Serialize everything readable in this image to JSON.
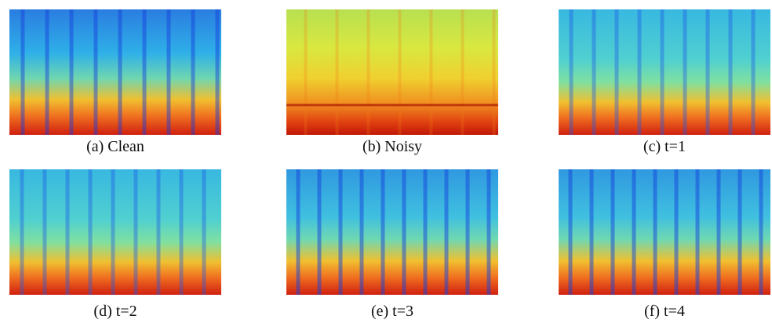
{
  "figure": {
    "panels": [
      {
        "caption": "(a) Clean"
      },
      {
        "caption": "(b) Noisy"
      },
      {
        "caption": "(c) t=1"
      },
      {
        "caption": "(d) t=2"
      },
      {
        "caption": "(e) t=3"
      },
      {
        "caption": "(f) t=4"
      }
    ]
  }
}
